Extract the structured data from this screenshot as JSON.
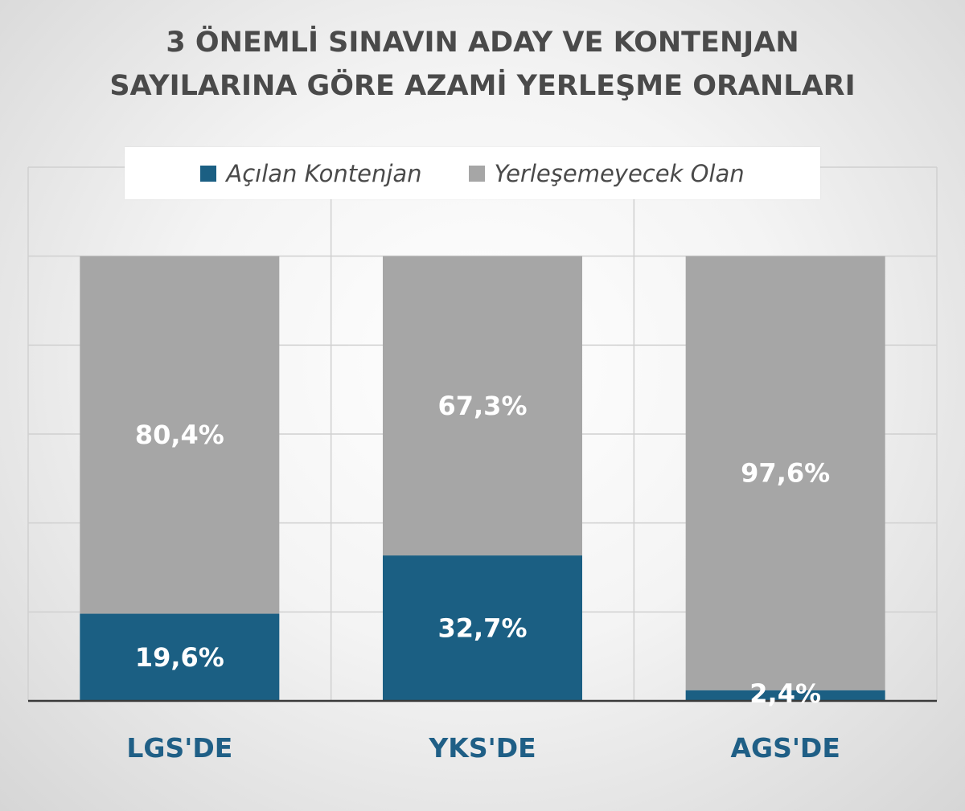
{
  "chart_data": {
    "type": "bar",
    "stacked": true,
    "title_lines": [
      "3 ÖNEMLİ SINAVIN ADAY VE KONTENJAN",
      "SAYILARINA GÖRE AZAMİ YERLEŞME ORANLARI"
    ],
    "categories": [
      "LGS'DE",
      "YKS'DE",
      "AGS'DE"
    ],
    "series": [
      {
        "name": "Açılan Kontenjan",
        "values": [
          19.6,
          32.7,
          2.4
        ],
        "labels": [
          "19,6%",
          "32,7%",
          "2,4%"
        ],
        "color": "#1b5f83"
      },
      {
        "name": "Yerleşemeyecek Olan",
        "values": [
          80.4,
          67.3,
          97.6
        ],
        "labels": [
          "80,4%",
          "67,3%",
          "97,6%"
        ],
        "color": "#a6a6a6"
      }
    ],
    "ylim": [
      0,
      120
    ],
    "grid": true,
    "legend_position": "top"
  }
}
